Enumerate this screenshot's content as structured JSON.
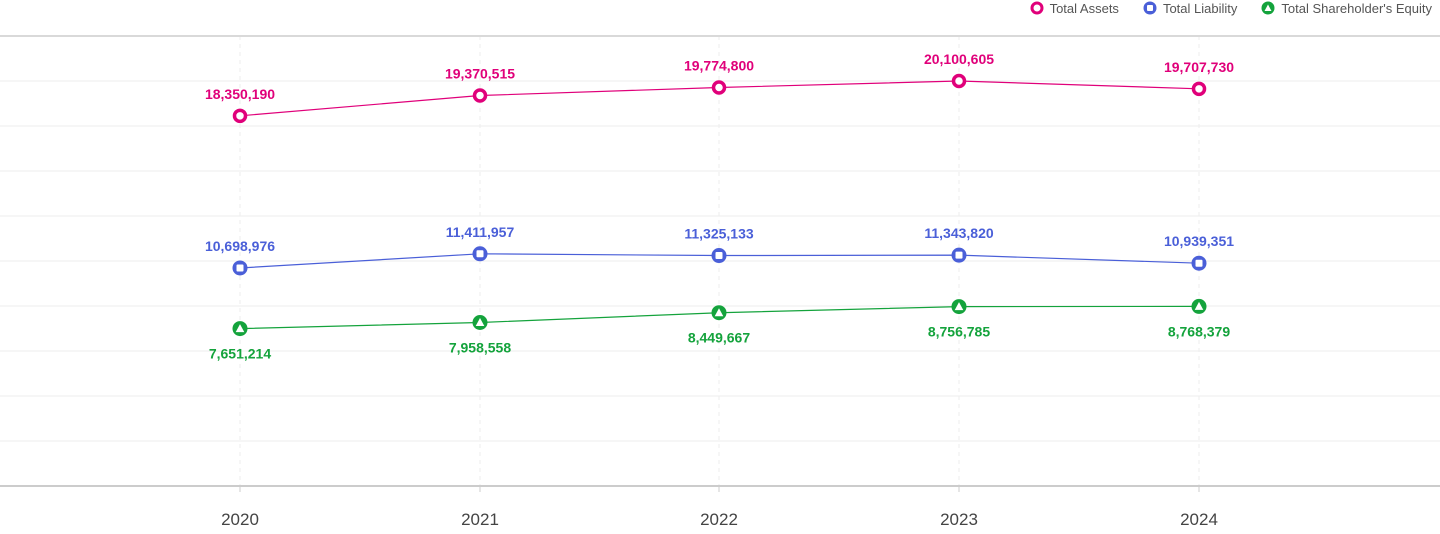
{
  "chart_data": {
    "type": "line",
    "categories": [
      "2020",
      "2021",
      "2022",
      "2023",
      "2024"
    ],
    "series": [
      {
        "name": "Total Assets",
        "marker": "circle",
        "color": "#e0007a",
        "values": [
          18350190,
          19370515,
          19774800,
          20100605,
          19707730
        ],
        "labels": [
          "18,350,190",
          "19,370,515",
          "19,774,800",
          "20,100,605",
          "19,707,730"
        ]
      },
      {
        "name": "Total Liability",
        "marker": "square",
        "color": "#4a5fd8",
        "values": [
          10698976,
          11411957,
          11325133,
          11343820,
          10939351
        ],
        "labels": [
          "10,698,976",
          "11,411,957",
          "11,325,133",
          "11,343,820",
          "10,939,351"
        ]
      },
      {
        "name": "Total Shareholder's Equity",
        "marker": "triangle",
        "color": "#14a33c",
        "values": [
          7651214,
          7958558,
          8449667,
          8756785,
          8768379
        ],
        "labels": [
          "7,651,214",
          "7,958,558",
          "8,449,667",
          "8,756,785",
          "8,768,379"
        ]
      }
    ],
    "grid": true,
    "legend_position": "top-right"
  }
}
